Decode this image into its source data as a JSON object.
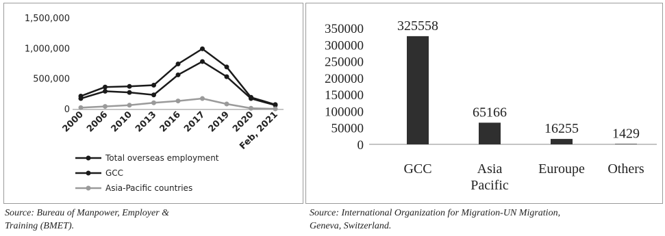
{
  "chart_data": [
    {
      "type": "line",
      "x": [
        "2000",
        "2006",
        "2010",
        "2013",
        "2016",
        "2017",
        "2019",
        "2020",
        "Feb, 2021"
      ],
      "ylim": [
        0,
        1500000
      ],
      "yticks": [
        "0",
        "500,000",
        "1,000,000",
        "1,500,000"
      ],
      "ytick_values": [
        0,
        500000,
        1000000,
        1500000
      ],
      "grid": false,
      "legend_position": "bottom",
      "colors": [
        "#1a1a1a",
        "#1a1a1a",
        "#9a9a9a"
      ],
      "series": [
        {
          "name": "Total overseas employment",
          "values": [
            220000,
            370000,
            380000,
            400000,
            750000,
            1000000,
            700000,
            200000,
            80000
          ]
        },
        {
          "name": "GCC",
          "values": [
            180000,
            300000,
            280000,
            240000,
            570000,
            790000,
            540000,
            180000,
            70000
          ]
        },
        {
          "name": "Asia-Pacific countries",
          "values": [
            30000,
            50000,
            70000,
            110000,
            140000,
            180000,
            90000,
            20000,
            10000
          ]
        }
      ]
    },
    {
      "type": "bar",
      "categories": [
        "GCC",
        "Asia Pacific",
        "Euroupe",
        "Others"
      ],
      "category_lines": [
        [
          "GCC"
        ],
        [
          "Asia",
          "Pacific"
        ],
        [
          "Euroupe"
        ],
        [
          "Others"
        ]
      ],
      "values": [
        325558,
        65166,
        16255,
        1429
      ],
      "data_labels": [
        "325558",
        "65166",
        "16255",
        "1429"
      ],
      "ylim": [
        0,
        350000
      ],
      "yticks": [
        "0",
        "50000",
        "100000",
        "150000",
        "200000",
        "250000",
        "300000",
        "350000"
      ],
      "ytick_values": [
        0,
        50000,
        100000,
        150000,
        200000,
        250000,
        300000,
        350000
      ],
      "grid": false,
      "bar_color": "#2f2f2f"
    }
  ],
  "sources": {
    "left_line1": "Source: Bureau of Manpower, Employer &",
    "left_line2": "Training (BMET).",
    "right_line1": "Source: International Organization for Migration-UN Migration,",
    "right_line2": "Geneva, Switzerland."
  }
}
